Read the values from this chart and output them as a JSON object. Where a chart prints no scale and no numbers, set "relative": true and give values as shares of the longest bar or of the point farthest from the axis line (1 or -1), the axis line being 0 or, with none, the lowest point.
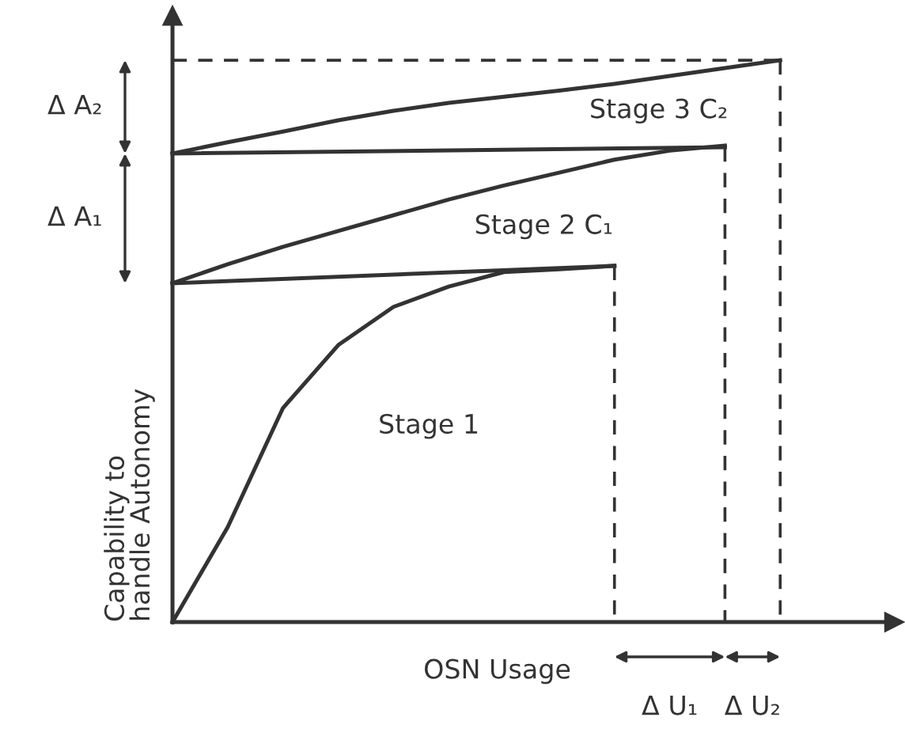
{
  "chart_data": {
    "type": "line",
    "relative": true,
    "xlabel": "OSN Usage",
    "ylabel": "Capability to\nhandle Autonomy",
    "categories": [
      null,
      null,
      null,
      null,
      null,
      null,
      null,
      null,
      null,
      null,
      null,
      null
    ],
    "series": [
      {
        "color": "#333333",
        "line_style": "solid",
        "values": [
          0,
          0.169,
          0.381,
          0.493,
          0.561,
          0.597,
          0.623,
          0.628,
          0.634,
          null,
          null,
          null
        ]
      },
      {
        "color": "#333333",
        "line_style": "solid",
        "values": [
          0.603,
          null,
          null,
          null,
          null,
          null,
          null,
          null,
          0.634,
          null,
          null,
          null
        ]
      },
      {
        "color": "#333333",
        "line_style": "solid",
        "values": [
          0.603,
          0.637,
          0.668,
          0.696,
          0.724,
          0.752,
          0.777,
          0.8,
          0.823,
          0.839,
          0.848,
          null
        ]
      },
      {
        "color": "#333333",
        "line_style": "solid",
        "values": [
          0.834,
          null,
          null,
          null,
          null,
          null,
          null,
          null,
          null,
          null,
          0.845,
          null
        ]
      },
      {
        "color": "#333333",
        "line_style": "solid",
        "values": [
          0.834,
          0.854,
          0.873,
          0.893,
          0.91,
          0.924,
          0.935,
          0.946,
          0.958,
          0.972,
          0.986,
          1.0
        ]
      },
      {
        "color": "#333333",
        "line_style": "dashed",
        "values": [
          1.0,
          null,
          null,
          null,
          null,
          null,
          null,
          null,
          null,
          null,
          null,
          1.0
        ]
      }
    ],
    "annotations": [
      "Stage 1",
      "Stage 2 C₁",
      "Stage 3 C₂",
      "Δ A₁",
      "Δ A₂",
      "Δ U₁",
      "Δ U₂"
    ]
  }
}
